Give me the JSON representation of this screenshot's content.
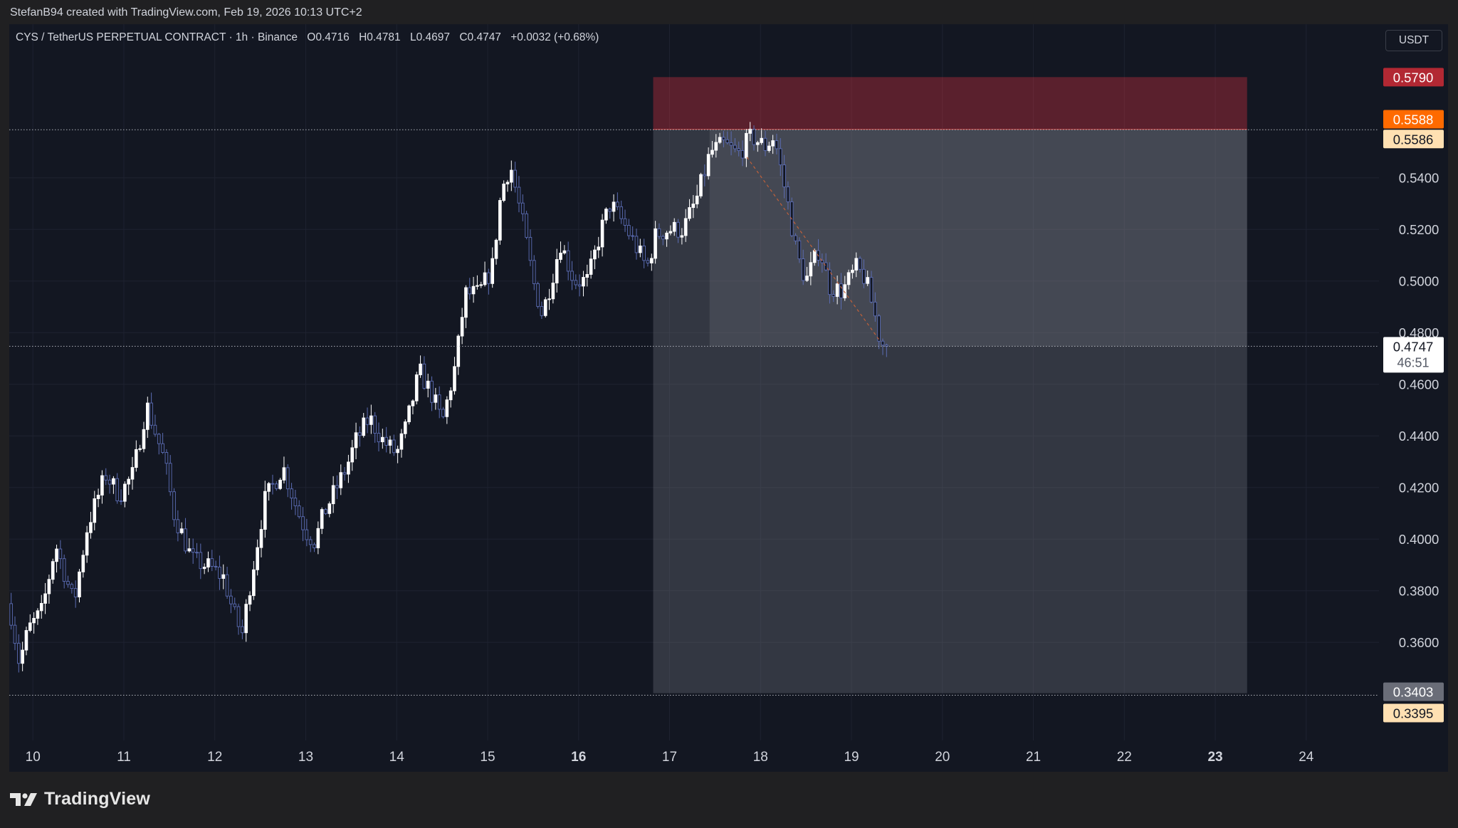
{
  "header": {
    "credit": "StefanB94 created with TradingView.com, Feb 19, 2026 10:13 UTC+2"
  },
  "legend": {
    "symbol": "CYS / TetherUS PERPETUAL CONTRACT · 1h · Binance",
    "open": "O0.4716",
    "high": "H0.4781",
    "low": "L0.4697",
    "close": "C0.4747",
    "change": "+0.0032 (+0.68%)"
  },
  "currency": "USDT",
  "footer": {
    "brand": "TradingView"
  },
  "colors": {
    "background": "#131722",
    "up_candle": "#ffffff",
    "down_candle": "#5b6cb3",
    "stop_zone": "#f23645",
    "target_zone": "#787b86",
    "last_price_label": "#ffffff",
    "stop_label": "#b22833",
    "entry_label": "#ff6a00",
    "entry_alt_label": "#ffe0b2"
  },
  "chart_data": {
    "type": "candlestick",
    "timeframe": "1h",
    "x_ticks": [
      {
        "day": 10,
        "label": "10",
        "bold": false
      },
      {
        "day": 11,
        "label": "11",
        "bold": false
      },
      {
        "day": 12,
        "label": "12",
        "bold": false
      },
      {
        "day": 13,
        "label": "13",
        "bold": false
      },
      {
        "day": 14,
        "label": "14",
        "bold": false
      },
      {
        "day": 15,
        "label": "15",
        "bold": false
      },
      {
        "day": 16,
        "label": "16",
        "bold": true
      },
      {
        "day": 17,
        "label": "17",
        "bold": false
      },
      {
        "day": 18,
        "label": "18",
        "bold": false
      },
      {
        "day": 19,
        "label": "19",
        "bold": false
      },
      {
        "day": 20,
        "label": "20",
        "bold": false
      },
      {
        "day": 21,
        "label": "21",
        "bold": false
      },
      {
        "day": 22,
        "label": "22",
        "bold": false
      },
      {
        "day": 23,
        "label": "23",
        "bold": true
      },
      {
        "day": 24,
        "label": "24",
        "bold": false
      }
    ],
    "y_ticks": [
      {
        "value": 0.54,
        "label": "0.5400"
      },
      {
        "value": 0.52,
        "label": "0.5200"
      },
      {
        "value": 0.5,
        "label": "0.5000"
      },
      {
        "value": 0.48,
        "label": "0.4800"
      },
      {
        "value": 0.46,
        "label": "0.4600"
      },
      {
        "value": 0.44,
        "label": "0.4400"
      },
      {
        "value": 0.42,
        "label": "0.4200"
      },
      {
        "value": 0.4,
        "label": "0.4000"
      },
      {
        "value": 0.38,
        "label": "0.3800"
      },
      {
        "value": 0.36,
        "label": "0.3600"
      }
    ],
    "ylim": [
      0.322,
      0.5995
    ],
    "xlim_days": [
      9.74,
      24.8
    ],
    "price_labels": [
      {
        "value": 0.579,
        "label": "0.5790",
        "role": "stop"
      },
      {
        "value": 0.5588,
        "label": "0.5588",
        "role": "entry"
      },
      {
        "value": 0.5586,
        "label": "0.5586",
        "role": "entry-alt"
      },
      {
        "value": 0.4747,
        "label": "0.4747",
        "role": "last-price",
        "countdown": "46:51"
      },
      {
        "value": 0.3403,
        "label": "0.3403",
        "role": "target"
      },
      {
        "value": 0.3395,
        "label": "0.3395",
        "role": "target-alt"
      }
    ],
    "short_position": {
      "start_day": 16.82,
      "end_day": 23.35,
      "entry": 0.5588,
      "stop": 0.579,
      "target": 0.3403,
      "filled_from_day": 17.44,
      "filled_top": 0.5588,
      "filled_bottom": 0.4747
    },
    "path": [
      [
        9.74,
        0.375
      ],
      [
        9.85,
        0.352
      ],
      [
        9.95,
        0.365
      ],
      [
        10.1,
        0.372
      ],
      [
        10.25,
        0.398
      ],
      [
        10.45,
        0.375
      ],
      [
        10.6,
        0.405
      ],
      [
        10.8,
        0.425
      ],
      [
        10.95,
        0.417
      ],
      [
        11.1,
        0.425
      ],
      [
        11.25,
        0.452
      ],
      [
        11.45,
        0.43
      ],
      [
        11.55,
        0.41
      ],
      [
        11.75,
        0.392
      ],
      [
        11.95,
        0.389
      ],
      [
        12.1,
        0.385
      ],
      [
        12.2,
        0.372
      ],
      [
        12.3,
        0.363
      ],
      [
        12.4,
        0.385
      ],
      [
        12.55,
        0.415
      ],
      [
        12.75,
        0.428
      ],
      [
        12.9,
        0.412
      ],
      [
        13.0,
        0.403
      ],
      [
        13.1,
        0.399
      ],
      [
        13.2,
        0.41
      ],
      [
        13.45,
        0.428
      ],
      [
        13.55,
        0.438
      ],
      [
        13.7,
        0.447
      ],
      [
        13.85,
        0.438
      ],
      [
        14.0,
        0.433
      ],
      [
        14.1,
        0.443
      ],
      [
        14.25,
        0.465
      ],
      [
        14.4,
        0.455
      ],
      [
        14.5,
        0.445
      ],
      [
        14.65,
        0.468
      ],
      [
        14.75,
        0.495
      ],
      [
        14.9,
        0.495
      ],
      [
        15.05,
        0.505
      ],
      [
        15.15,
        0.535
      ],
      [
        15.25,
        0.545
      ],
      [
        15.4,
        0.52
      ],
      [
        15.5,
        0.5
      ],
      [
        15.6,
        0.487
      ],
      [
        15.7,
        0.5
      ],
      [
        15.8,
        0.515
      ],
      [
        15.95,
        0.5
      ],
      [
        16.1,
        0.5
      ],
      [
        16.25,
        0.52
      ],
      [
        16.35,
        0.53
      ],
      [
        16.5,
        0.522
      ],
      [
        16.65,
        0.512
      ],
      [
        16.75,
        0.505
      ],
      [
        16.85,
        0.518
      ],
      [
        17.0,
        0.52
      ],
      [
        17.15,
        0.52
      ],
      [
        17.3,
        0.532
      ],
      [
        17.45,
        0.55
      ],
      [
        17.6,
        0.553
      ],
      [
        17.75,
        0.549
      ],
      [
        17.9,
        0.556
      ],
      [
        18.05,
        0.552
      ],
      [
        18.15,
        0.556
      ],
      [
        18.3,
        0.53
      ],
      [
        18.4,
        0.51
      ],
      [
        18.5,
        0.5
      ],
      [
        18.65,
        0.513
      ],
      [
        18.75,
        0.498
      ],
      [
        18.9,
        0.496
      ],
      [
        19.05,
        0.505
      ],
      [
        19.15,
        0.501
      ],
      [
        19.25,
        0.488
      ],
      [
        19.32,
        0.476
      ],
      [
        19.42,
        0.4747
      ]
    ]
  }
}
